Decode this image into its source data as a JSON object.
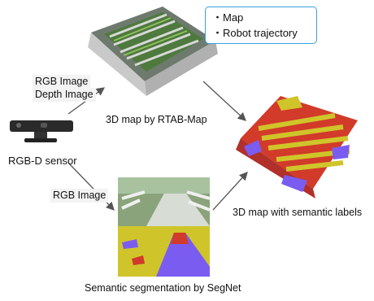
{
  "callout": {
    "items": [
      "・Map",
      "・Robot trajectory"
    ]
  },
  "nodes": {
    "sensor": "RGB-D sensor",
    "map_rtab": "3D map by RTAB-Map",
    "segnet": "Semantic segmentation by SegNet",
    "semantic_map": "3D map with semantic labels"
  },
  "edges": {
    "upper_label_1": "RGB Image",
    "upper_label_2": "Depth Image",
    "lower_label": "RGB Image"
  },
  "colors": {
    "callout_border": "#3aa0e0",
    "label_yellow": "#cfc52a",
    "label_red": "#d23a2a",
    "label_purple": "#7a5cf0",
    "arrow": "#555555"
  }
}
